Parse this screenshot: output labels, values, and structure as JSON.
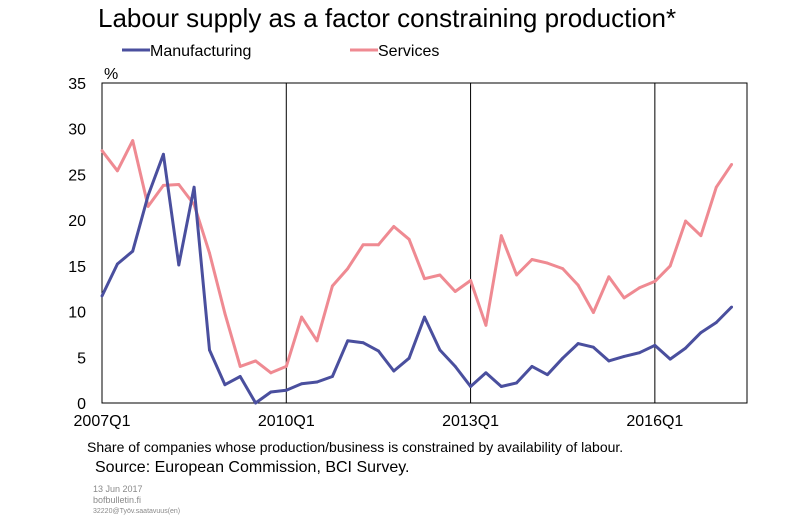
{
  "chart_data": {
    "type": "line",
    "title": "Labour supply as a factor constraining production*",
    "ylabel": "%",
    "ylim": [
      0,
      35
    ],
    "yticks": [
      "0",
      "5",
      "10",
      "15",
      "20",
      "25",
      "30",
      "35"
    ],
    "xticks": [
      "2007Q1",
      "2010Q1",
      "2013Q1",
      "2016Q1"
    ],
    "x": [
      "2007Q1",
      "2007Q2",
      "2007Q3",
      "2007Q4",
      "2008Q1",
      "2008Q2",
      "2008Q3",
      "2008Q4",
      "2009Q1",
      "2009Q2",
      "2009Q3",
      "2009Q4",
      "2010Q1",
      "2010Q2",
      "2010Q3",
      "2010Q4",
      "2011Q1",
      "2011Q2",
      "2011Q3",
      "2011Q4",
      "2012Q1",
      "2012Q2",
      "2012Q3",
      "2012Q4",
      "2013Q1",
      "2013Q2",
      "2013Q3",
      "2013Q4",
      "2014Q1",
      "2014Q2",
      "2014Q3",
      "2014Q4",
      "2015Q1",
      "2015Q2",
      "2015Q3",
      "2015Q4",
      "2016Q1",
      "2016Q2",
      "2016Q3",
      "2016Q4",
      "2017Q1",
      "2017Q2"
    ],
    "grid": "vertical lines at year ticks",
    "legend": "top",
    "series": [
      {
        "name": "Manufacturing",
        "color": "#4a4f9e",
        "values": [
          11.7,
          15.2,
          16.6,
          22.7,
          27.2,
          15.1,
          23.6,
          5.8,
          2.0,
          2.9,
          0.0,
          1.2,
          1.4,
          2.1,
          2.3,
          2.9,
          6.8,
          6.6,
          5.7,
          3.5,
          4.9,
          9.4,
          5.8,
          4.0,
          1.8,
          3.3,
          1.8,
          2.2,
          4.0,
          3.1,
          4.9,
          6.5,
          6.1,
          4.6,
          5.1,
          5.5,
          6.3,
          4.8,
          6.0,
          7.7,
          8.8,
          10.5
        ]
      },
      {
        "name": "Services",
        "color": "#ef8a92",
        "values": [
          27.6,
          25.4,
          28.7,
          21.5,
          23.8,
          23.9,
          21.7,
          16.4,
          9.8,
          4.0,
          4.6,
          3.3,
          4.0,
          9.4,
          6.8,
          12.8,
          14.7,
          17.3,
          17.3,
          19.3,
          17.9,
          13.6,
          14.0,
          12.2,
          13.4,
          8.5,
          18.3,
          14.0,
          15.7,
          15.3,
          14.7,
          12.9,
          9.9,
          13.8,
          11.5,
          12.6,
          13.3,
          15.0,
          19.9,
          18.3,
          23.6,
          26.1
        ]
      }
    ]
  },
  "footnote": "Share of companies whose production/business is constrained by availability of labour.",
  "source": "Source: European Commission, BCI Survey.",
  "meta": {
    "date": "13 Jun 2017",
    "site": "bofbulletin.fi",
    "code": "32220@Työv.saatavuus(en)"
  }
}
